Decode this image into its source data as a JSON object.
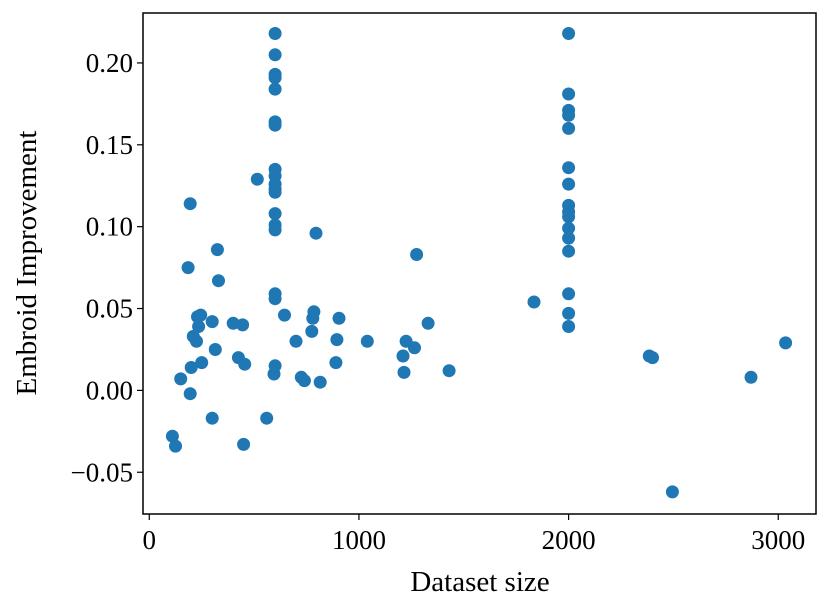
{
  "chart_data": {
    "type": "scatter",
    "xlabel": "Dataset size",
    "ylabel": "Embroid Improvement",
    "xlim": [
      -30,
      3180
    ],
    "ylim": [
      -0.0755,
      0.2305
    ],
    "xticks": [
      {
        "value": 0,
        "label": "0"
      },
      {
        "value": 1000,
        "label": "1000"
      },
      {
        "value": 2000,
        "label": "2000"
      },
      {
        "value": 3000,
        "label": "3000"
      }
    ],
    "yticks": [
      {
        "value": -0.05,
        "label": "−0.05"
      },
      {
        "value": 0.0,
        "label": "0.00"
      },
      {
        "value": 0.05,
        "label": "0.05"
      },
      {
        "value": 0.1,
        "label": "0.10"
      },
      {
        "value": 0.15,
        "label": "0.15"
      },
      {
        "value": 0.2,
        "label": "0.20"
      }
    ],
    "grid": false,
    "marker_color": "#1f77b4",
    "points": [
      [
        110,
        -0.028
      ],
      [
        125,
        -0.034
      ],
      [
        150,
        0.007
      ],
      [
        185,
        0.075
      ],
      [
        195,
        0.114
      ],
      [
        195,
        -0.002
      ],
      [
        200,
        0.014
      ],
      [
        210,
        0.033
      ],
      [
        225,
        0.03
      ],
      [
        230,
        0.045
      ],
      [
        235,
        0.039
      ],
      [
        245,
        0.046
      ],
      [
        250,
        0.017
      ],
      [
        300,
        -0.017
      ],
      [
        300,
        0.042
      ],
      [
        315,
        0.025
      ],
      [
        325,
        0.086
      ],
      [
        330,
        0.067
      ],
      [
        400,
        0.041
      ],
      [
        425,
        0.02
      ],
      [
        445,
        0.04
      ],
      [
        450,
        -0.033
      ],
      [
        455,
        0.016
      ],
      [
        515,
        0.129
      ],
      [
        560,
        -0.017
      ],
      [
        595,
        0.01
      ],
      [
        600,
        0.218
      ],
      [
        600,
        0.205
      ],
      [
        600,
        0.193
      ],
      [
        600,
        0.191
      ],
      [
        600,
        0.184
      ],
      [
        600,
        0.164
      ],
      [
        600,
        0.162
      ],
      [
        600,
        0.135
      ],
      [
        600,
        0.131
      ],
      [
        600,
        0.126
      ],
      [
        600,
        0.123
      ],
      [
        600,
        0.121
      ],
      [
        600,
        0.108
      ],
      [
        600,
        0.101
      ],
      [
        600,
        0.098
      ],
      [
        600,
        0.059
      ],
      [
        600,
        0.056
      ],
      [
        600,
        0.015
      ],
      [
        645,
        0.046
      ],
      [
        700,
        0.03
      ],
      [
        725,
        0.008
      ],
      [
        740,
        0.006
      ],
      [
        775,
        0.036
      ],
      [
        780,
        0.044
      ],
      [
        785,
        0.048
      ],
      [
        795,
        0.096
      ],
      [
        815,
        0.005
      ],
      [
        890,
        0.017
      ],
      [
        895,
        0.031
      ],
      [
        905,
        0.044
      ],
      [
        1040,
        0.03
      ],
      [
        1210,
        0.021
      ],
      [
        1215,
        0.011
      ],
      [
        1225,
        0.03
      ],
      [
        1265,
        0.026
      ],
      [
        1275,
        0.083
      ],
      [
        1330,
        0.041
      ],
      [
        1430,
        0.012
      ],
      [
        1835,
        0.054
      ],
      [
        2000,
        0.218
      ],
      [
        2000,
        0.181
      ],
      [
        2000,
        0.171
      ],
      [
        2000,
        0.168
      ],
      [
        2000,
        0.16
      ],
      [
        2000,
        0.136
      ],
      [
        2000,
        0.126
      ],
      [
        2000,
        0.113
      ],
      [
        2000,
        0.109
      ],
      [
        2000,
        0.106
      ],
      [
        2000,
        0.099
      ],
      [
        2000,
        0.093
      ],
      [
        2000,
        0.085
      ],
      [
        2000,
        0.059
      ],
      [
        2000,
        0.047
      ],
      [
        2000,
        0.039
      ],
      [
        2385,
        0.021
      ],
      [
        2400,
        0.02
      ],
      [
        2495,
        -0.062
      ],
      [
        2870,
        0.008
      ],
      [
        3035,
        0.029
      ]
    ]
  }
}
